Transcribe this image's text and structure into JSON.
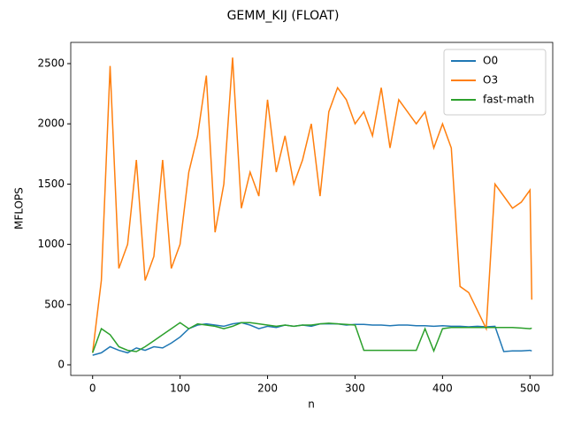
{
  "chart_data": {
    "type": "line",
    "title": "GEMM_KIJ (FLOAT)",
    "x_label": "n",
    "y_label": "MFLOPS",
    "x": [
      0,
      10,
      20,
      30,
      40,
      50,
      60,
      70,
      80,
      90,
      100,
      110,
      120,
      130,
      140,
      150,
      160,
      170,
      180,
      190,
      200,
      210,
      220,
      230,
      240,
      250,
      260,
      270,
      280,
      290,
      300,
      310,
      320,
      330,
      340,
      350,
      360,
      370,
      380,
      390,
      400,
      410,
      420,
      430,
      440,
      450,
      460,
      470,
      480,
      490,
      500,
      502
    ],
    "series": [
      {
        "name": "O0",
        "color": "#1f77b4",
        "values": [
          80,
          100,
          150,
          120,
          100,
          140,
          120,
          150,
          140,
          180,
          230,
          300,
          330,
          340,
          330,
          320,
          340,
          350,
          330,
          300,
          320,
          310,
          330,
          320,
          330,
          320,
          340,
          340,
          340,
          330,
          335,
          335,
          330,
          330,
          325,
          330,
          330,
          325,
          325,
          320,
          325,
          320,
          320,
          315,
          320,
          315,
          320,
          110,
          115,
          115,
          120,
          115
        ]
      },
      {
        "name": "O3",
        "color": "#ff7f0e",
        "values": [
          100,
          700,
          2480,
          800,
          1000,
          1700,
          700,
          900,
          1700,
          800,
          1000,
          1600,
          1900,
          2400,
          1100,
          1500,
          2550,
          1300,
          1600,
          1400,
          2200,
          1600,
          1900,
          1500,
          1700,
          2000,
          1400,
          2100,
          2300,
          2200,
          2000,
          2100,
          1900,
          2300,
          1800,
          2200,
          2100,
          2000,
          2100,
          1800,
          2000,
          1800,
          650,
          600,
          450,
          300,
          1500,
          1400,
          1300,
          1350,
          1450,
          540
        ]
      },
      {
        "name": "fast-math",
        "color": "#2ca02c",
        "values": [
          100,
          300,
          250,
          150,
          120,
          110,
          150,
          200,
          250,
          300,
          350,
          300,
          340,
          330,
          320,
          300,
          320,
          350,
          350,
          340,
          330,
          320,
          330,
          320,
          330,
          330,
          340,
          345,
          340,
          335,
          330,
          120,
          120,
          120,
          120,
          120,
          120,
          120,
          300,
          115,
          300,
          310,
          310,
          310,
          310,
          310,
          310,
          310,
          310,
          305,
          300,
          305
        ]
      }
    ],
    "xlim": [
      -25,
      526
    ],
    "ylim": [
      -88,
      2676
    ],
    "xticks": [
      0,
      100,
      200,
      300,
      400,
      500
    ],
    "yticks": [
      0,
      500,
      1000,
      1500,
      2000,
      2500
    ],
    "legend": "upper right"
  }
}
